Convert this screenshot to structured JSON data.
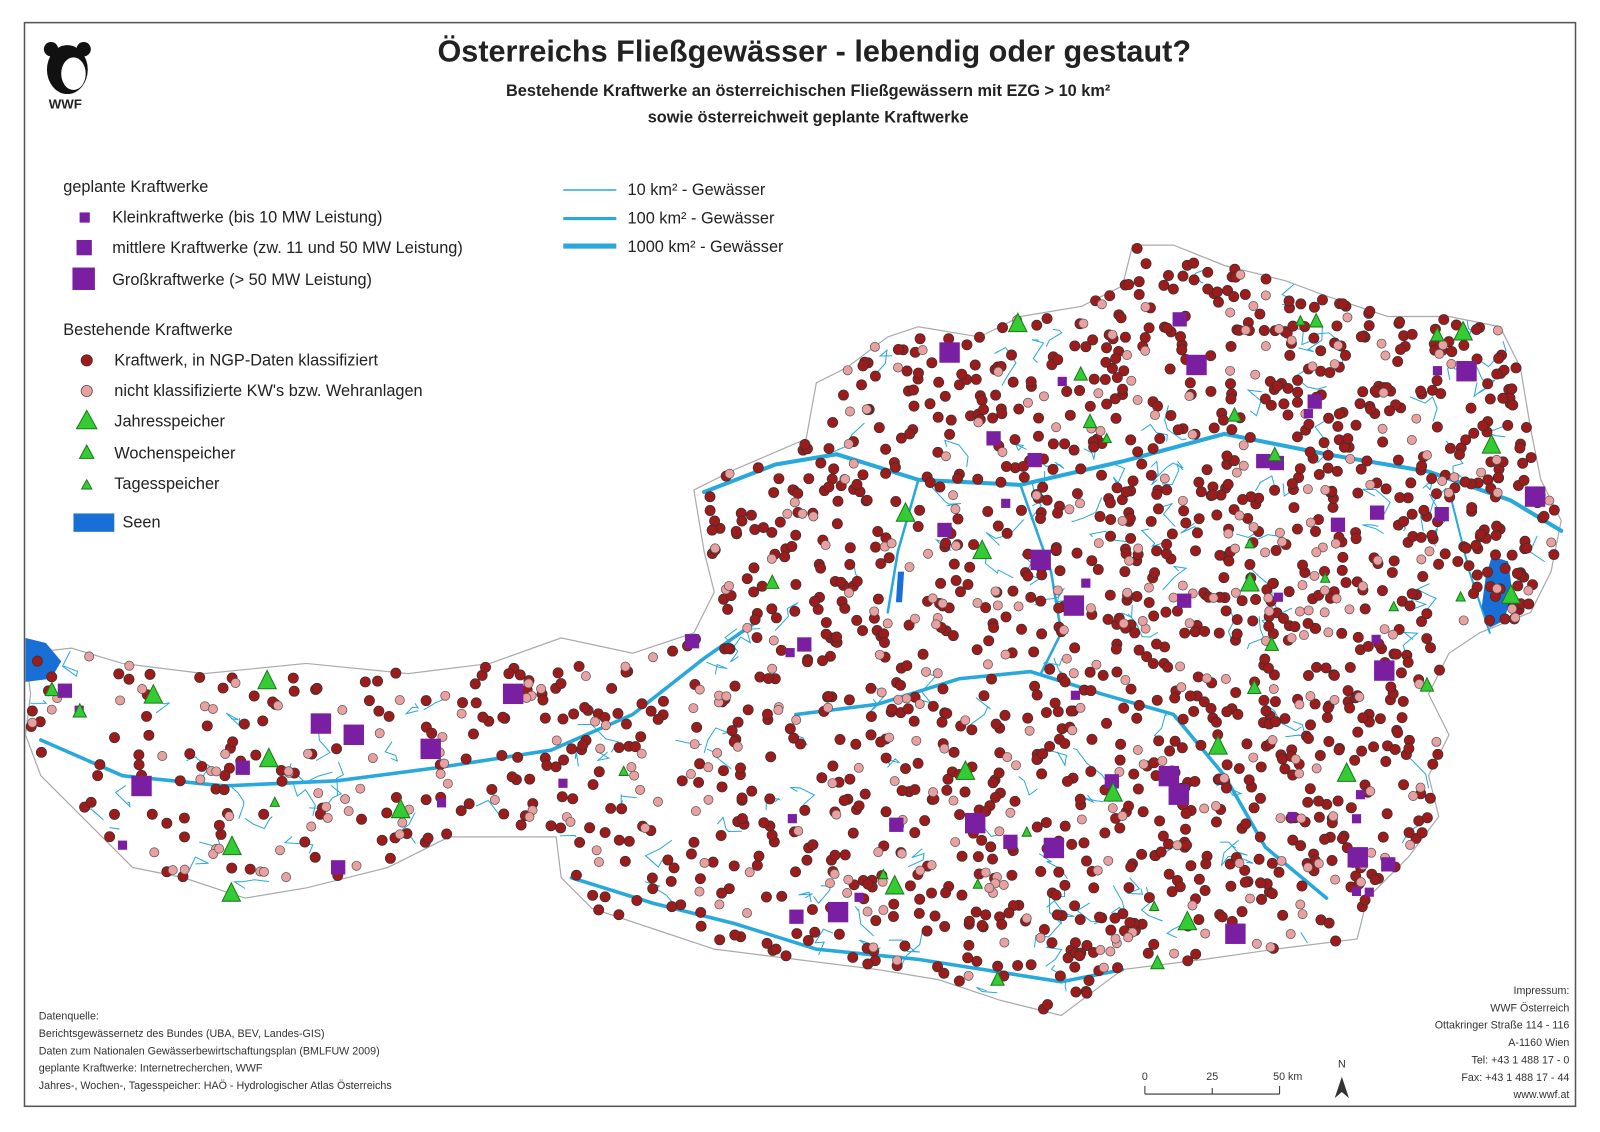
{
  "header": {
    "logo": "WWF",
    "title": "Österreichs Fließgewässer - lebendig oder gestaut?",
    "subtitle_lines": [
      "Bestehende Kraftwerke an österreichischen Fließgewässern mit EZG > 10 km²",
      "sowie österreichweit geplante Kraftwerke"
    ]
  },
  "legend": {
    "planned": {
      "heading": "geplante Kraftwerke",
      "items": [
        "Kleinkraftwerke (bis 10 MW Leistung)",
        "mittlere Kraftwerke (zw. 11 und 50 MW Leistung)",
        "Großkraftwerke (> 50 MW Leistung)"
      ]
    },
    "existing": {
      "heading": "Bestehende Kraftwerke",
      "items": [
        "Kraftwerk, in NGP-Daten klassifiziert",
        "nicht klassifizierte KW's bzw. Wehranlagen",
        "Jahresspeicher",
        "Wochenspeicher",
        "Tagesspeicher"
      ]
    },
    "lakes": "Seen",
    "rivers": [
      "10 km² - Gewässer",
      "100 km² - Gewässer",
      "1000 km² - Gewässer"
    ]
  },
  "sources": [
    "Datenquelle:",
    "Berichtsgewässernetz des Bundes (UBA, BEV, Landes-GIS)",
    "Daten zum Nationalen Gewässerbewirtschaftungsplan (BMLFUW 2009)",
    "geplante Kraftwerke: Internetrecherchen, WWF",
    "Jahres-, Wochen-, Tagesspeicher: HAÖ - Hydrologischer Atlas Österreichs"
  ],
  "impressum": [
    "Impressum:",
    "WWF Österreich",
    "Ottakringer Straße 114 - 116",
    "A-1160 Wien",
    "Tel: +43 1 488 17 - 0",
    "Fax: +43 1 488 17 - 44",
    "www.wwf.at"
  ],
  "scale": {
    "labels": [
      "0",
      "25",
      "50 km"
    ],
    "north": "N"
  }
}
